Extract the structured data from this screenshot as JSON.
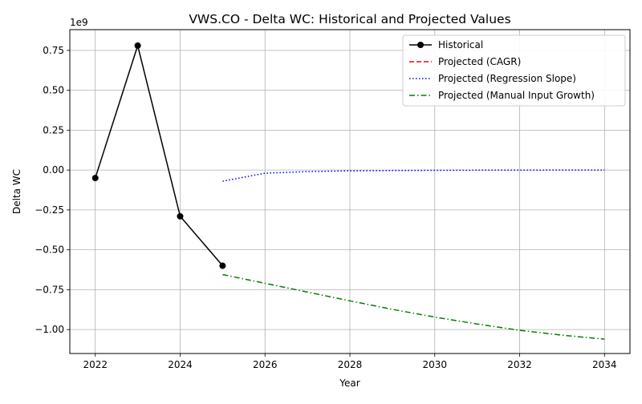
{
  "chart_data": {
    "type": "line",
    "title": "VWS.CO - Delta WC: Historical and Projected Values",
    "xlabel": "Year",
    "ylabel": "Delta WC",
    "y_scale_label": "1e9",
    "xlim": [
      2021.4,
      2034.6
    ],
    "ylim": [
      -1.15,
      0.88
    ],
    "x_ticks": [
      2022,
      2024,
      2026,
      2028,
      2030,
      2032,
      2034
    ],
    "x_tick_labels": [
      "2022",
      "2024",
      "2026",
      "2028",
      "2030",
      "2032",
      "2034"
    ],
    "y_ticks": [
      0.75,
      0.5,
      0.25,
      0.0,
      -0.25,
      -0.5,
      -0.75,
      -1.0
    ],
    "y_tick_labels": [
      "0.75",
      "0.50",
      "0.25",
      "0.00",
      "−0.25",
      "−0.50",
      "−0.75",
      "−1.00"
    ],
    "grid": true,
    "legend_position": "top-right",
    "series": [
      {
        "name": "Historical",
        "color": "#000000",
        "style": "solid",
        "marker": "circle",
        "x": [
          2022,
          2023,
          2024,
          2025
        ],
        "values": [
          -0.05,
          0.78,
          -0.29,
          -0.6
        ]
      },
      {
        "name": "Projected (CAGR)",
        "color": "#ff0000",
        "style": "dashed",
        "marker": "none",
        "x": [],
        "values": []
      },
      {
        "name": "Projected (Regression Slope)",
        "color": "#0000ff",
        "style": "dotted",
        "marker": "none",
        "x": [
          2025,
          2026,
          2027,
          2028,
          2029,
          2030,
          2031,
          2032,
          2033,
          2034
        ],
        "values": [
          -0.07,
          -0.02,
          -0.01,
          -0.005,
          -0.003,
          -0.002,
          -0.001,
          -0.001,
          0.0,
          0.0
        ]
      },
      {
        "name": "Projected (Manual Input Growth)",
        "color": "#008000",
        "style": "dashdot",
        "marker": "none",
        "x": [
          2025,
          2026,
          2027,
          2028,
          2029,
          2030,
          2031,
          2032,
          2033,
          2034
        ],
        "values": [
          -0.655,
          -0.71,
          -0.765,
          -0.82,
          -0.873,
          -0.922,
          -0.965,
          -1.005,
          -1.035,
          -1.06
        ]
      }
    ]
  }
}
